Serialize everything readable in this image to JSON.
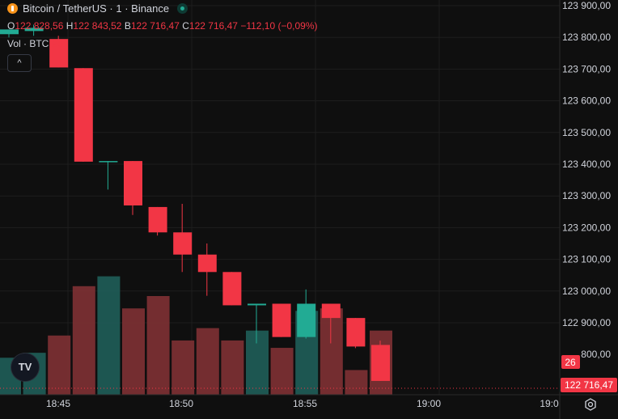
{
  "legend": {
    "symbol": "Bitcoin / TetherUS · 1 · Binance",
    "open_key": "O",
    "open": "122 828,56",
    "high_key": "H",
    "high": "122 843,52",
    "low_key": "B",
    "low": "122 716,47",
    "close_key": "C",
    "close": "122 716,47",
    "change": "−112,10 (−0,09%)",
    "vol_label": "Vol · BTC",
    "vol_value": "26"
  },
  "buttons": {
    "collapse": "^"
  },
  "logo": {
    "text": "TV"
  },
  "colors": {
    "up": "#22ab94",
    "down": "#f23645",
    "vol_up": "#1f5b55",
    "vol_down": "#7a2f33",
    "grid": "#1e1e1e",
    "text": "#d1d4dc",
    "bg": "#0f0f0f"
  },
  "chart_data": {
    "type": "candlestick",
    "y_axis_labels": [
      "123 900,00",
      "123 800,00",
      "123 700,00",
      "123 600,00",
      "123 500,00",
      "123 400,00",
      "123 300,00",
      "123 200,00",
      "123 100,00",
      "123 000,00",
      "122 900,00",
      "800,00"
    ],
    "ylim": [
      122716.47,
      123900
    ],
    "x_ticks": [
      "18:45",
      "18:50",
      "18:55",
      "19:00",
      "19:0"
    ],
    "price_label": "122 716,47",
    "volume_label": "26",
    "candles": [
      {
        "o": 123810,
        "h": 123825,
        "l": 123800,
        "c": 123825,
        "v": 15,
        "dir": "up"
      },
      {
        "o": 123820,
        "h": 123840,
        "l": 123805,
        "c": 123830,
        "v": 17,
        "dir": "up"
      },
      {
        "o": 123795,
        "h": 123805,
        "l": 123705,
        "c": 123705,
        "v": 24,
        "dir": "down"
      },
      {
        "o": 123703,
        "h": 123703,
        "l": 123408,
        "c": 123408,
        "v": 44,
        "dir": "down"
      },
      {
        "o": 123410,
        "h": 123410,
        "l": 123320,
        "c": 123410,
        "v": 48,
        "dir": "up"
      },
      {
        "o": 123410,
        "h": 123410,
        "l": 123240,
        "c": 123270,
        "v": 35,
        "dir": "down"
      },
      {
        "o": 123265,
        "h": 123265,
        "l": 123175,
        "c": 123185,
        "v": 40,
        "dir": "down"
      },
      {
        "o": 123185,
        "h": 123275,
        "l": 123060,
        "c": 123115,
        "v": 22,
        "dir": "down"
      },
      {
        "o": 123115,
        "h": 123150,
        "l": 122985,
        "c": 123060,
        "v": 27,
        "dir": "down"
      },
      {
        "o": 123060,
        "h": 123060,
        "l": 122955,
        "c": 122955,
        "v": 22,
        "dir": "down"
      },
      {
        "o": 122955,
        "h": 122960,
        "l": 122835,
        "c": 122960,
        "v": 26,
        "dir": "up"
      },
      {
        "o": 122960,
        "h": 122960,
        "l": 122855,
        "c": 122855,
        "v": 19,
        "dir": "down"
      },
      {
        "o": 122855,
        "h": 123005,
        "l": 122850,
        "c": 122960,
        "v": 34,
        "dir": "up"
      },
      {
        "o": 122960,
        "h": 122960,
        "l": 122835,
        "c": 122915,
        "v": 35,
        "dir": "down"
      },
      {
        "o": 122915,
        "h": 122915,
        "l": 122820,
        "c": 122825,
        "v": 10,
        "dir": "down"
      },
      {
        "o": 122830,
        "h": 122843.52,
        "l": 122716.47,
        "c": 122716.47,
        "v": 26,
        "dir": "down"
      }
    ]
  }
}
